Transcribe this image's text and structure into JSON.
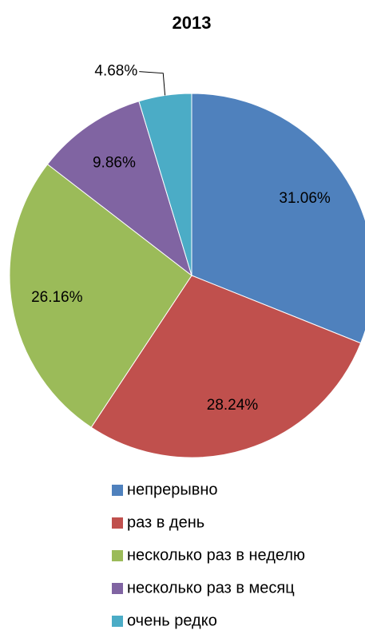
{
  "chart_data": {
    "type": "pie",
    "title": "2013",
    "categories": [
      "непрерывно",
      "раз в день",
      "несколько раз в неделю",
      "несколько раз в месяц",
      "очень редко"
    ],
    "values": [
      31.06,
      28.24,
      26.16,
      9.86,
      4.68
    ],
    "value_labels": [
      "31.06%",
      "28.24%",
      "26.16%",
      "9.86%",
      "4.68%"
    ],
    "colors": [
      "#4f81bd",
      "#c0504d",
      "#9bbb59",
      "#8064a2",
      "#4bacc6"
    ],
    "legend": "bottom"
  }
}
